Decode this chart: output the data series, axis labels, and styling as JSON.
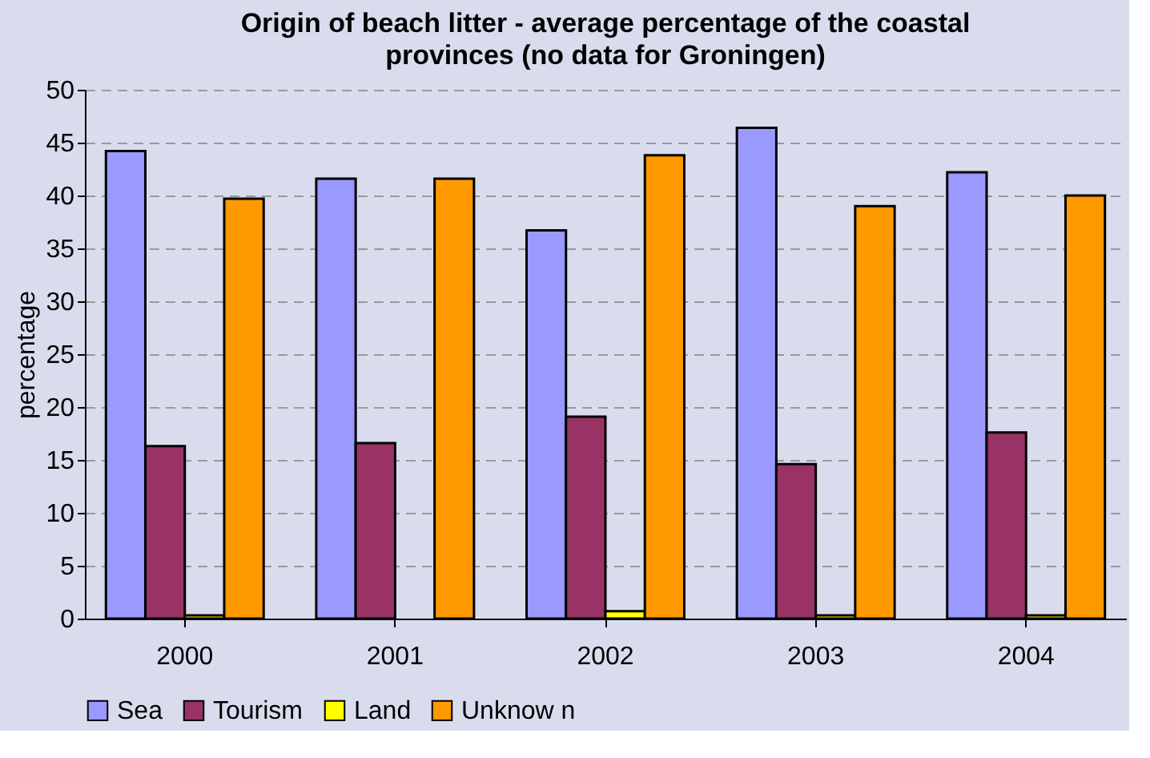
{
  "chart_data": {
    "type": "bar",
    "title": "Origin of beach litter - average percentage of the coastal provinces (no data for Groningen)",
    "ylabel": "percentage",
    "categories": [
      "2000",
      "2001",
      "2002",
      "2003",
      "2004"
    ],
    "series": [
      {
        "name": "Sea",
        "color": "#9999ff",
        "values": [
          44.2,
          41.6,
          36.7,
          46.4,
          42.2
        ]
      },
      {
        "name": "Tourism",
        "color": "#993366",
        "values": [
          16.3,
          16.6,
          19.1,
          14.6,
          17.6
        ]
      },
      {
        "name": "Land",
        "color": "#ffff00",
        "values": [
          0.3,
          null,
          0.7,
          0.3,
          0.3
        ]
      },
      {
        "name": "Unknow n",
        "color": "#ff9900",
        "values": [
          39.7,
          41.6,
          43.8,
          39.0,
          40.0
        ]
      }
    ],
    "ylim": [
      0,
      50
    ],
    "yticks": [
      0,
      5,
      10,
      15,
      20,
      25,
      30,
      35,
      40,
      45,
      50
    ],
    "grid": "y",
    "legend": "bottom"
  }
}
